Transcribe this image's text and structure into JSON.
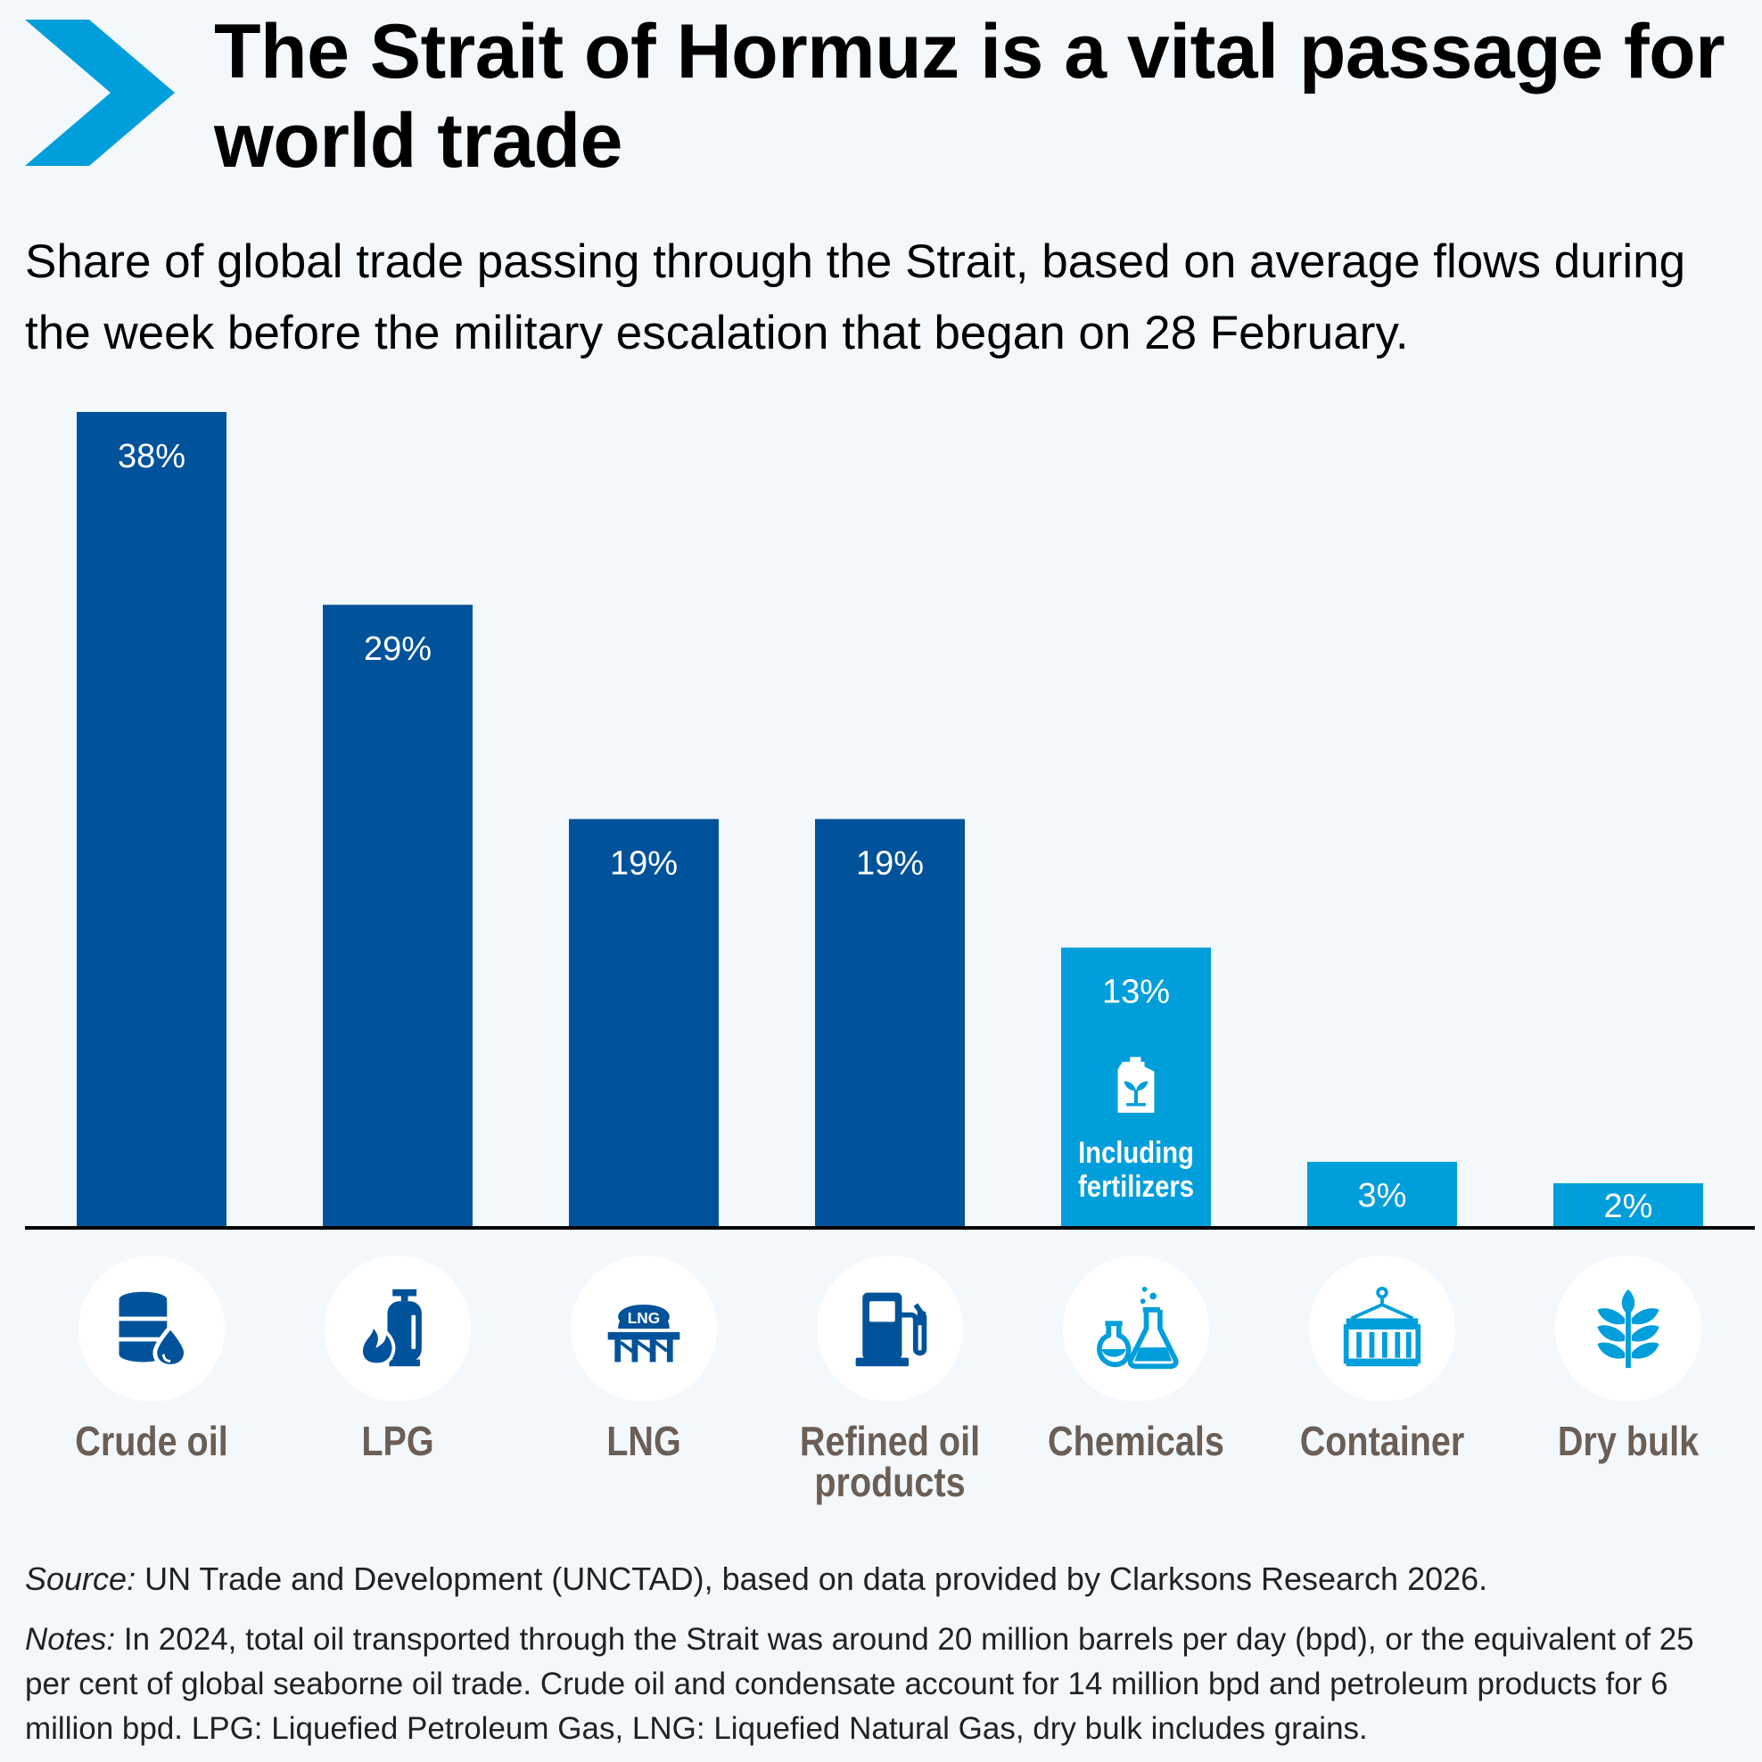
{
  "header": {
    "title": "The Strait of Hormuz is a vital passage for world trade",
    "subtitle": "Share of global trade passing through the Strait, based on average flows during the week before the military escalation that began on 28 February."
  },
  "chart_data": {
    "type": "bar",
    "categories": [
      "Crude oil",
      "LPG",
      "LNG",
      "Refined oil products",
      "Chemicals",
      "Container",
      "Dry bulk"
    ],
    "values": [
      38,
      29,
      19,
      19,
      13,
      3,
      2
    ],
    "value_labels": [
      "38%",
      "29%",
      "19%",
      "19%",
      "13%",
      "3%",
      "2%"
    ],
    "ylim": [
      0,
      38
    ],
    "grid": false,
    "annotations": [
      {
        "category": "Chemicals",
        "text": "Including fertilizers",
        "icon": "fertilizer-canister-icon"
      }
    ],
    "colors": {
      "dark": "#00529b",
      "light": "#009edb"
    },
    "bar_colors": [
      "dark",
      "dark",
      "dark",
      "dark",
      "light",
      "light",
      "light"
    ],
    "icons": [
      "oil-barrel-icon",
      "gas-cylinder-icon",
      "lng-tank-icon",
      "fuel-pump-icon",
      "chemical-flasks-icon",
      "shipping-container-icon",
      "wheat-icon"
    ]
  },
  "footer": {
    "source_label": "Source:",
    "source_text": " UN Trade and Development (UNCTAD), based on data provided by Clarksons Research 2026.",
    "notes_label": "Notes:",
    "notes_text": " In 2024, total oil transported through the Strait was around 20 million barrels per day (bpd), or the equivalent of  25 per cent of global seaborne oil trade. Crude oil and condensate account for 14 million bpd and petroleum products for 6 million bpd. LPG: Liquefied Petroleum Gas, LNG: Liquefied Natural Gas, dry bulk includes grains."
  }
}
